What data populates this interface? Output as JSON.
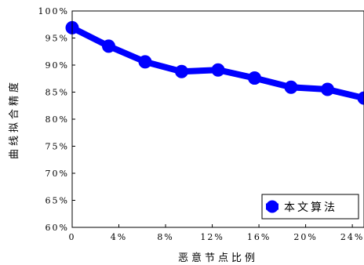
{
  "chart_data": {
    "type": "line",
    "title": "",
    "xlabel": "恶意节点比例",
    "ylabel": "曲线拟合精度",
    "xlim": [
      0,
      25
    ],
    "ylim": [
      60,
      100
    ],
    "x_ticks": [
      0,
      4,
      8,
      12,
      16,
      20,
      24
    ],
    "x_tick_labels": [
      "0",
      "4%",
      "8%",
      "12%",
      "16%",
      "20%",
      "24%"
    ],
    "y_ticks": [
      60,
      65,
      70,
      75,
      80,
      85,
      90,
      95,
      100
    ],
    "y_tick_labels": [
      "60%",
      "65%",
      "70%",
      "75%",
      "80%",
      "85%",
      "90%",
      "95%",
      "100%"
    ],
    "legend_position": "bottom-right",
    "grid": false,
    "series": [
      {
        "name": "本文算法",
        "color": "#0000ff",
        "marker": "circle",
        "x": [
          0,
          3.125,
          6.25,
          9.375,
          12.5,
          15.625,
          18.75,
          21.875,
          25
        ],
        "y": [
          96.9,
          93.5,
          90.6,
          88.8,
          89.1,
          87.6,
          85.9,
          85.5,
          83.9
        ]
      }
    ]
  }
}
